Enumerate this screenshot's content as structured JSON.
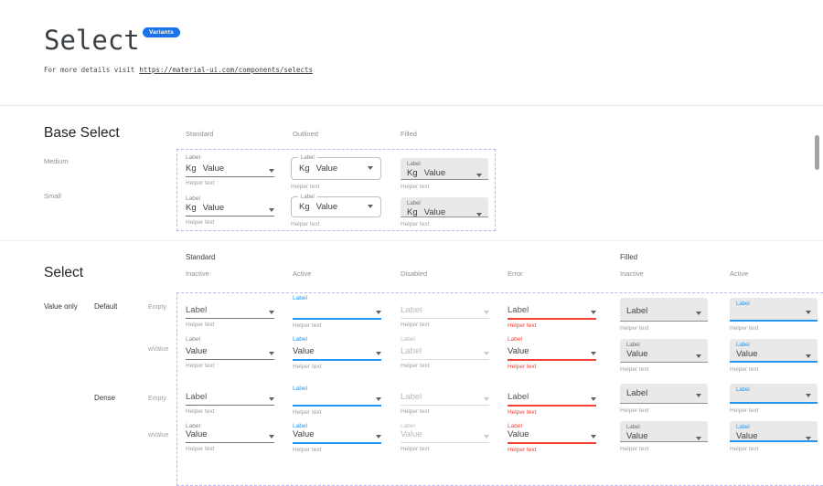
{
  "colors": {
    "accent": "#2196f3",
    "error": "#f44336",
    "badge_bg": "#1a73e8",
    "filled_bg": "#e9e9e9",
    "dashed_border": "#b3baf2"
  },
  "header": {
    "title": "Select",
    "badge": "Variants",
    "details_prefix": "For more details visit",
    "details_link": "https://material-ui.com/components/selects"
  },
  "base_select": {
    "heading": "Base Select",
    "columns": [
      "Standard",
      "Outlined",
      "Filled"
    ],
    "rows": [
      "Medium",
      "Small"
    ],
    "cell": {
      "label": "Label",
      "adornment": "Kg",
      "value": "Value",
      "helper": "Helper text"
    }
  },
  "select_grid": {
    "heading": "Select",
    "group_headers": [
      "Standard",
      "Filled"
    ],
    "state_headers": [
      "Inactive",
      "Active",
      "Disabled",
      "Error",
      "Inactive",
      "Active"
    ],
    "category_label": "Value only",
    "row_labels": {
      "density1": "Default",
      "density2": "Dense",
      "variant1": "Empty",
      "variant2": "wValue"
    },
    "rows": [
      {
        "density": "Default",
        "variant": "Empty",
        "cells": [
          {
            "style": "standard",
            "state": "inactive",
            "label": "",
            "value": "Label",
            "helper": "Helper text"
          },
          {
            "style": "standard",
            "state": "active",
            "label": "Label",
            "value": "",
            "helper": "Helper text"
          },
          {
            "style": "standard",
            "state": "disabled",
            "label": "",
            "value": "Label",
            "helper": "Helper text"
          },
          {
            "style": "standard",
            "state": "error",
            "label": "",
            "value": "Label",
            "helper": "Helper text"
          },
          {
            "style": "filled",
            "state": "inactive",
            "label": "",
            "value": "Label",
            "helper": "Helper text"
          },
          {
            "style": "filled",
            "state": "active",
            "label": "Label",
            "value": "",
            "helper": "Helper text"
          }
        ]
      },
      {
        "density": "Default",
        "variant": "wValue",
        "cells": [
          {
            "style": "standard",
            "state": "inactive",
            "label": "Label",
            "value": "Value",
            "helper": "Helper text"
          },
          {
            "style": "standard",
            "state": "active",
            "label": "Label",
            "value": "Value",
            "helper": "Helper text"
          },
          {
            "style": "standard",
            "state": "disabled",
            "label": "Label",
            "value": "Label",
            "helper": "Helper text"
          },
          {
            "style": "standard",
            "state": "error",
            "label": "Label",
            "value": "Value",
            "helper": "Helper text"
          },
          {
            "style": "filled",
            "state": "inactive",
            "label": "Label",
            "value": "Value",
            "helper": "Helper text"
          },
          {
            "style": "filled",
            "state": "active",
            "label": "Label",
            "value": "Value",
            "helper": "Helper text"
          }
        ]
      },
      {
        "density": "Dense",
        "variant": "Empty",
        "cells": [
          {
            "style": "standard",
            "state": "inactive",
            "label": "",
            "value": "Label",
            "helper": "Helper text"
          },
          {
            "style": "standard",
            "state": "active",
            "label": "Label",
            "value": "",
            "helper": "Helper text"
          },
          {
            "style": "standard",
            "state": "disabled",
            "label": "",
            "value": "Label",
            "helper": "Helper text"
          },
          {
            "style": "standard",
            "state": "error",
            "label": "",
            "value": "Label",
            "helper": "Helper text"
          },
          {
            "style": "filled",
            "state": "inactive",
            "label": "",
            "value": "Label",
            "helper": "Helper text"
          },
          {
            "style": "filled",
            "state": "active",
            "label": "Label",
            "value": "",
            "helper": "Helper text"
          }
        ]
      },
      {
        "density": "Dense",
        "variant": "wValue",
        "cells": [
          {
            "style": "standard",
            "state": "inactive",
            "label": "Label",
            "value": "Value",
            "helper": "Helper text"
          },
          {
            "style": "standard",
            "state": "active",
            "label": "Label",
            "value": "Value",
            "helper": "Helper text"
          },
          {
            "style": "standard",
            "state": "disabled",
            "label": "Label",
            "value": "Value",
            "helper": "Helper text"
          },
          {
            "style": "standard",
            "state": "error",
            "label": "Label",
            "value": "Value",
            "helper": "Helper text"
          },
          {
            "style": "filled",
            "state": "inactive",
            "label": "Label",
            "value": "Value",
            "helper": "Helper text"
          },
          {
            "style": "filled",
            "state": "active",
            "label": "Label",
            "value": "Value",
            "helper": "Helper text"
          }
        ]
      }
    ]
  }
}
